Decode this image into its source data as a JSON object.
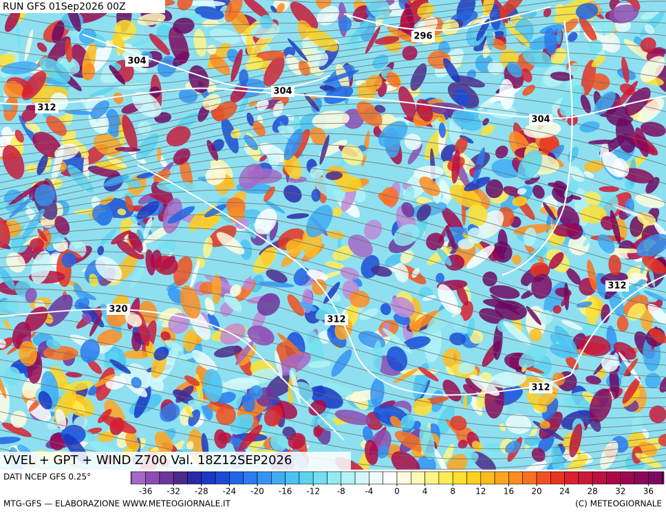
{
  "header": {
    "title": "RUN GFS 01Sep2026 00Z"
  },
  "map": {
    "field_title": "VVEL + GPT + WIND Z700 Val. 18Z12SEP2026",
    "contour_labels": [
      "296",
      "304",
      "304",
      "312",
      "304",
      "320",
      "312",
      "312",
      "312"
    ]
  },
  "legend": {
    "source": "DATI NCEP GFS 0.25°",
    "ticks": [
      -36,
      -32,
      -28,
      -24,
      -20,
      -16,
      -12,
      -8,
      -4,
      0,
      4,
      8,
      12,
      16,
      20,
      24,
      28,
      32,
      36
    ],
    "colors": [
      "#c088d8",
      "#a668c6",
      "#8c4cb4",
      "#6e349c",
      "#4a2a8c",
      "#2a2aa8",
      "#1a38c4",
      "#1a4cd8",
      "#2064e8",
      "#2a7cf0",
      "#3494f2",
      "#40acf2",
      "#4cc2f2",
      "#5cd4f0",
      "#74e0f0",
      "#94eaf2",
      "#b4f2f6",
      "#d4f8fa",
      "#ecfcfc",
      "#ffffff",
      "#fffce0",
      "#fff8b8",
      "#fff488",
      "#ffec58",
      "#ffe030",
      "#ffd020",
      "#ffbc20",
      "#ffa420",
      "#ff8c20",
      "#fa7020",
      "#f25020",
      "#e83420",
      "#dc2030",
      "#cc1838",
      "#bc1040",
      "#ac0848",
      "#9c0850",
      "#8c0858",
      "#7c0860",
      "#6c0862"
    ]
  },
  "footer": {
    "credit": "MTG-GFS — ELABORAZIONE WWW.METEOGIORNALE.IT",
    "copyright": "(C) METEOGIORNALE"
  }
}
